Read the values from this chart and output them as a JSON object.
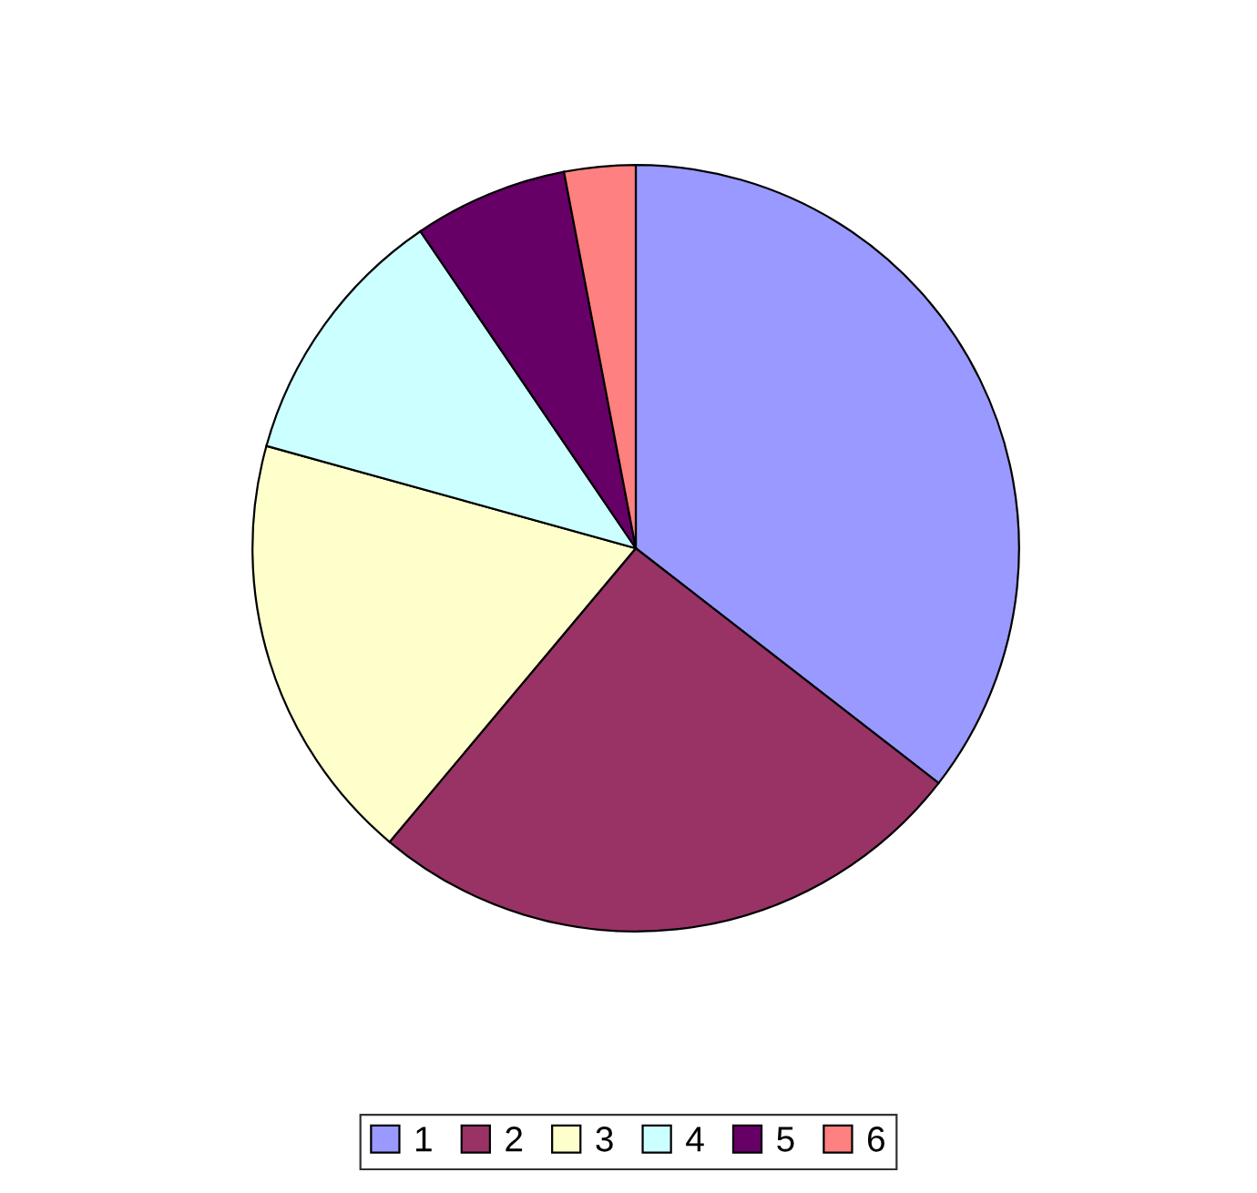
{
  "chart_data": {
    "type": "pie",
    "categories": [
      "1",
      "2",
      "3",
      "4",
      "5",
      "6"
    ],
    "values": [
      35.5,
      25.6,
      18.2,
      11.2,
      6.5,
      3.0
    ],
    "colors": [
      "#9999ff",
      "#993366",
      "#ffffcc",
      "#ccffff",
      "#660066",
      "#ff8080"
    ],
    "legend": "bottom"
  }
}
